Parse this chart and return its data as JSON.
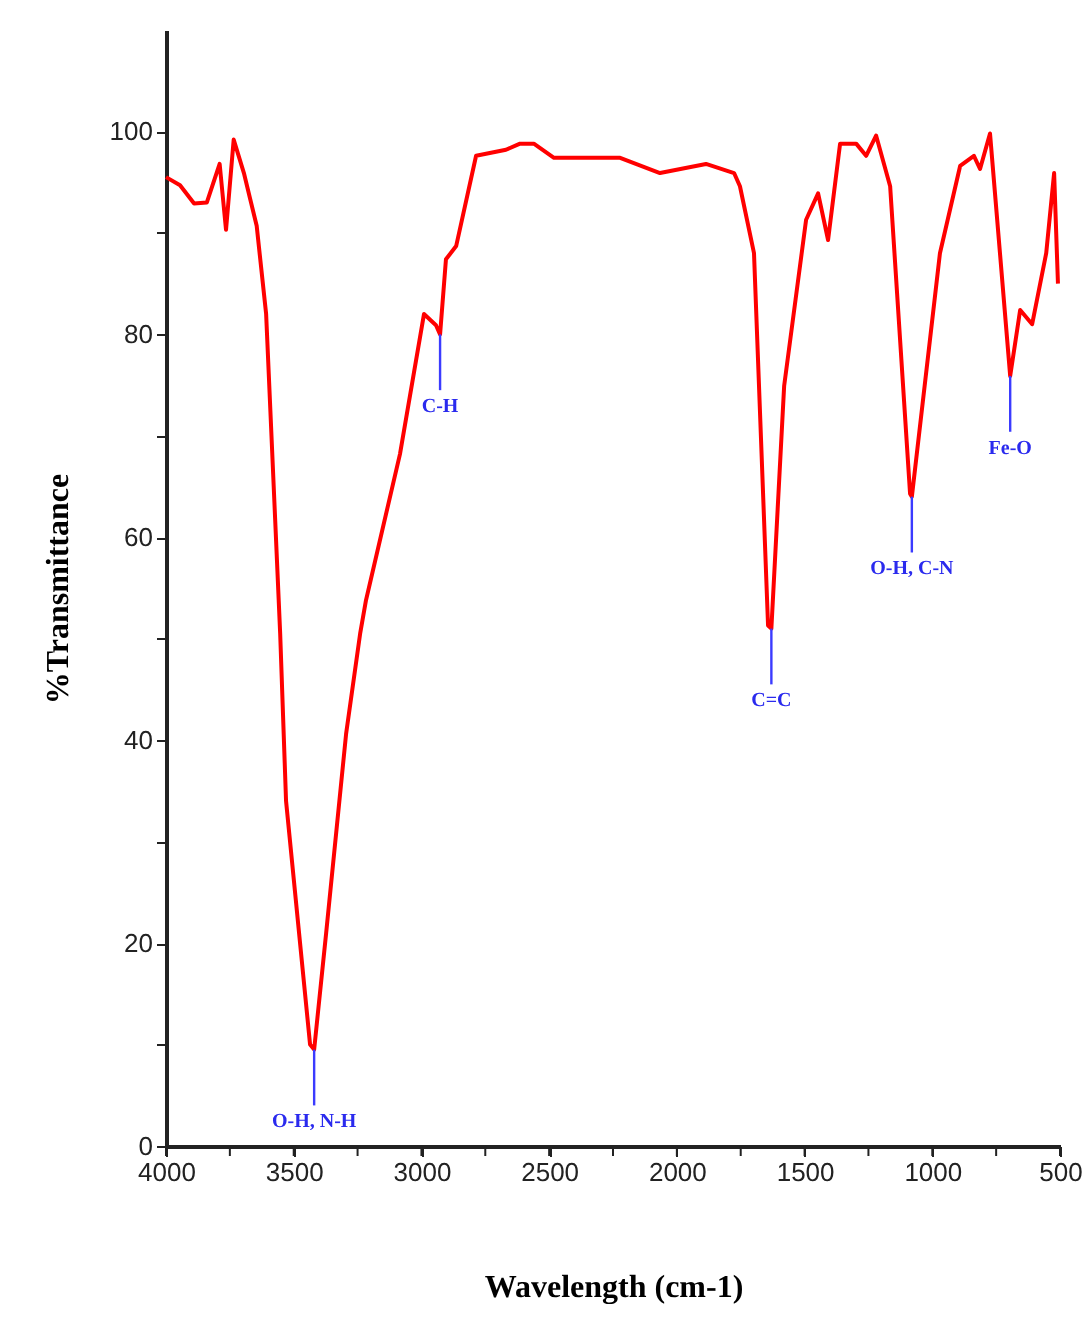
{
  "chart_data": {
    "type": "line",
    "xlabel": "Wavelength (cm-1)",
    "ylabel": "%Transmittance",
    "xlim": [
      4000,
      500
    ],
    "ylim": [
      0,
      110
    ],
    "xticks": [
      4000,
      {
        "value": 3750,
        "label": null
      },
      3500,
      {
        "value": 3250,
        "label": null
      },
      3000,
      {
        "value": 2750,
        "label": null
      },
      2500,
      {
        "value": 2250,
        "label": null
      },
      2000,
      {
        "value": 1750,
        "label": null
      },
      1500,
      {
        "value": 1250,
        "label": null
      },
      1000,
      {
        "value": 750,
        "label": null
      },
      500
    ],
    "yticks": [
      0,
      {
        "value": 10,
        "label": null
      },
      20,
      {
        "value": 30,
        "label": null
      },
      40,
      {
        "value": 50,
        "label": null
      },
      60,
      {
        "value": 70,
        "label": null
      },
      80,
      {
        "value": 90,
        "label": null
      },
      100
    ],
    "grid": false,
    "marker": "none",
    "line_style": "solid",
    "series": [
      {
        "color": "#ff0000",
        "x": [
          4000,
          3945,
          3890,
          3840,
          3790,
          3765,
          3735,
          3695,
          3670,
          3645,
          3608,
          3553,
          3530,
          3436,
          3420,
          3373,
          3295,
          3240,
          3217,
          3084,
          2990,
          2943,
          2927,
          2904,
          2864,
          2786,
          2669,
          2614,
          2560,
          2481,
          2222,
          2066,
          1886,
          1776,
          1753,
          1698,
          1643,
          1630,
          1580,
          1494,
          1447,
          1408,
          1361,
          1298,
          1259,
          1220,
          1165,
          1087,
          1080,
          970,
          891,
          837,
          813,
          774,
          695,
          656,
          609,
          554,
          523,
          508
        ],
        "values": [
          95.5,
          94.7,
          92.9,
          93,
          96.8,
          90.3,
          99.2,
          95.9,
          93.3,
          90.7,
          82,
          50.5,
          34,
          10,
          9.5,
          21,
          40.6,
          50.5,
          53.8,
          68.2,
          82,
          80.9,
          80,
          87.4,
          88.7,
          97.6,
          98.2,
          98.8,
          98.8,
          97.4,
          97.4,
          95.9,
          96.8,
          95.9,
          94.6,
          88,
          51.3,
          51,
          74.9,
          91.3,
          93.9,
          89.3,
          98.8,
          98.8,
          97.6,
          99.6,
          94.6,
          64.3,
          64,
          88,
          96.6,
          97.6,
          96.3,
          99.8,
          75.9,
          82.4,
          81,
          88,
          95.9,
          85
        ]
      }
    ],
    "annotations": [
      {
        "text": "O-H, N-H",
        "x": 3420,
        "y": 9.5
      },
      {
        "text": "C-H",
        "x": 2927,
        "y": 80
      },
      {
        "text": "C=C",
        "x": 1630,
        "y": 51
      },
      {
        "text": "O-H, C-N",
        "x": 1080,
        "y": 64
      },
      {
        "text": "Fe-O",
        "x": 695,
        "y": 75.9
      }
    ]
  }
}
